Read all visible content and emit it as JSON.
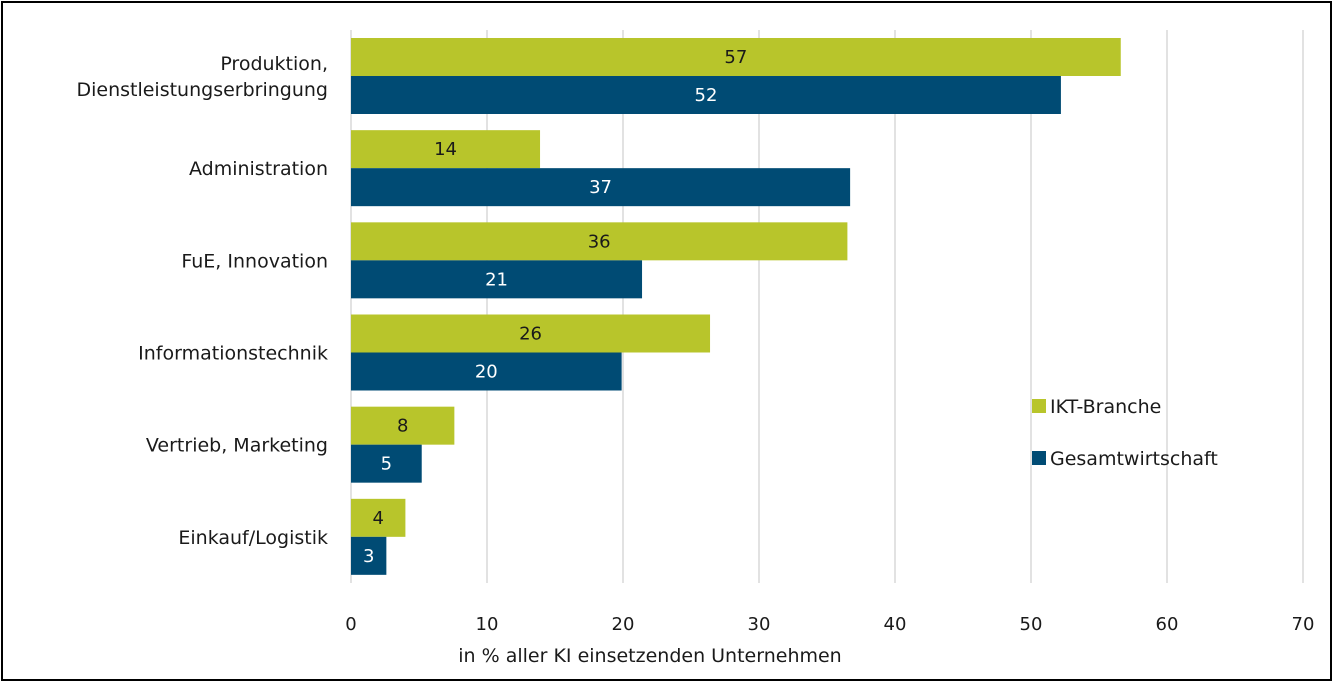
{
  "chart_data": {
    "type": "bar",
    "orientation": "horizontal",
    "categories": [
      [
        "Produktion,",
        "Dienstleistungserbringung"
      ],
      [
        "Administration"
      ],
      [
        "FuE, Innovation"
      ],
      [
        "Informationstechnik"
      ],
      [
        "Vertrieb, Marketing"
      ],
      [
        "Einkauf/Logistik"
      ]
    ],
    "series": [
      {
        "name": "IKT-Branche",
        "color": "#b8c52b",
        "label_color": "#1a1a1a",
        "values": [
          56.6,
          13.9,
          36.5,
          26.4,
          7.6,
          4.0
        ],
        "labels": [
          "57",
          "14",
          "36",
          "26",
          "8",
          "4"
        ]
      },
      {
        "name": "Gesamtwirtschaft",
        "color": "#004b74",
        "label_color": "#ffffff",
        "values": [
          52.2,
          36.7,
          21.4,
          19.9,
          5.2,
          2.6
        ],
        "labels": [
          "52",
          "37",
          "21",
          "20",
          "5",
          "3"
        ]
      }
    ],
    "xlim": [
      0,
      70
    ],
    "xticks": [
      "0",
      "10",
      "20",
      "30",
      "40",
      "50",
      "60",
      "70"
    ],
    "xlabel": "in % aller KI einsetzenden Unternehmen",
    "grid": "vertical",
    "legend_position": "right"
  }
}
